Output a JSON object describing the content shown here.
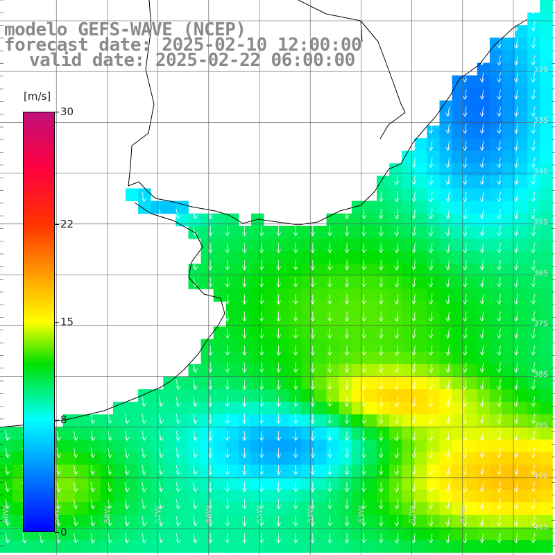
{
  "title": {
    "model": "modelo GEFS-WAVE (NCEP)",
    "forecast": "forecast date: 2025-02-10 12:00:00",
    "valid": "valid date: 2025-02-22 06:00:00"
  },
  "legend": {
    "unit": "[m/s]",
    "min": 0,
    "max": 30,
    "ticks": [
      {
        "value": 30,
        "label": "30"
      },
      {
        "value": 22,
        "label": "22"
      },
      {
        "value": 15,
        "label": "15"
      },
      {
        "value": 8,
        "label": "8"
      },
      {
        "value": 0,
        "label": "0"
      }
    ],
    "gradient_stops": [
      {
        "value": 0,
        "color": "#0000ff"
      },
      {
        "value": 8,
        "color": "#00ffff"
      },
      {
        "value": 12,
        "color": "#00e000"
      },
      {
        "value": 15,
        "color": "#ffff00"
      },
      {
        "value": 22,
        "color": "#ff3300"
      },
      {
        "value": 26,
        "color": "#ff0040"
      },
      {
        "value": 30,
        "color": "#c0107a"
      }
    ]
  },
  "lat_labels": [
    "32S",
    "33S",
    "34S",
    "35S",
    "36S",
    "37S",
    "38S",
    "39S",
    "40S",
    "41S"
  ],
  "lon_labels": [
    "60W",
    "59W",
    "58W",
    "57W",
    "56W",
    "55W",
    "54W",
    "53W",
    "52W",
    "51W"
  ],
  "colors": {
    "land": "#ffffff",
    "coast": "#000000",
    "grid": "#555555",
    "arrow": "#ffffff",
    "title": "#8a8a8a"
  }
}
